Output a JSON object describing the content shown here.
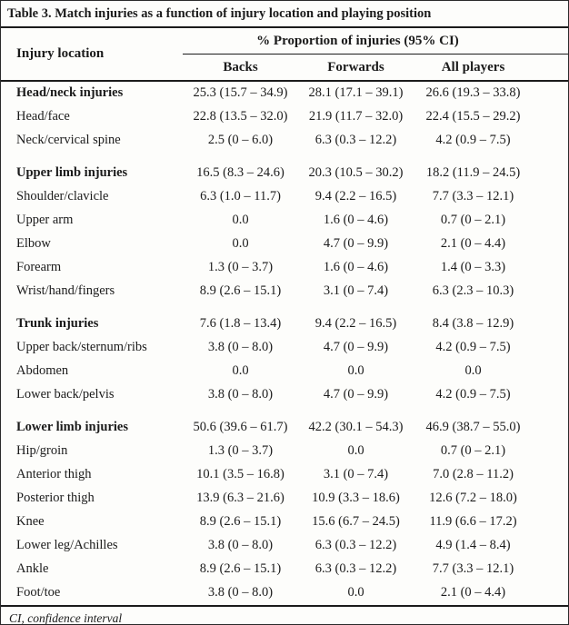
{
  "table": {
    "title": "Table 3. Match injuries as a function of injury location and playing position",
    "row_header": "Injury location",
    "col_group_header": "% Proportion of injuries (95% CI)",
    "columns": [
      "Backs",
      "Forwards",
      "All players"
    ],
    "rows": [
      {
        "label": "Head/neck injuries",
        "bold": true,
        "group_start": false,
        "values": [
          "25.3 (15.7 – 34.9)",
          "28.1 (17.1 – 39.1)",
          "26.6 (19.3 – 33.8)"
        ]
      },
      {
        "label": "Head/face",
        "bold": false,
        "group_start": false,
        "values": [
          "22.8 (13.5 – 32.0)",
          "21.9 (11.7 – 32.0)",
          "22.4 (15.5 – 29.2)"
        ]
      },
      {
        "label": "Neck/cervical spine",
        "bold": false,
        "group_start": false,
        "values": [
          "2.5 (0 – 6.0)",
          "6.3 (0.3 – 12.2)",
          "4.2 (0.9 – 7.5)"
        ]
      },
      {
        "label": "Upper limb injuries",
        "bold": true,
        "group_start": true,
        "values": [
          "16.5 (8.3 – 24.6)",
          "20.3 (10.5 – 30.2)",
          "18.2 (11.9 – 24.5)"
        ]
      },
      {
        "label": "Shoulder/clavicle",
        "bold": false,
        "group_start": false,
        "values": [
          "6.3 (1.0 – 11.7)",
          "9.4 (2.2 – 16.5)",
          "7.7 (3.3 – 12.1)"
        ]
      },
      {
        "label": "Upper arm",
        "bold": false,
        "group_start": false,
        "values": [
          "0.0",
          "1.6 (0 – 4.6)",
          "0.7 (0 – 2.1)"
        ]
      },
      {
        "label": "Elbow",
        "bold": false,
        "group_start": false,
        "values": [
          "0.0",
          "4.7 (0 – 9.9)",
          "2.1 (0 – 4.4)"
        ]
      },
      {
        "label": "Forearm",
        "bold": false,
        "group_start": false,
        "values": [
          "1.3 (0 – 3.7)",
          "1.6 (0 – 4.6)",
          "1.4 (0 – 3.3)"
        ]
      },
      {
        "label": "Wrist/hand/fingers",
        "bold": false,
        "group_start": false,
        "values": [
          "8.9 (2.6 – 15.1)",
          "3.1 (0 – 7.4)",
          "6.3 (2.3 – 10.3)"
        ]
      },
      {
        "label": "Trunk injuries",
        "bold": true,
        "group_start": true,
        "values": [
          "7.6 (1.8 – 13.4)",
          "9.4 (2.2 – 16.5)",
          "8.4 (3.8 – 12.9)"
        ]
      },
      {
        "label": "Upper back/sternum/ribs",
        "bold": false,
        "group_start": false,
        "values": [
          "3.8 (0 – 8.0)",
          "4.7 (0 – 9.9)",
          "4.2 (0.9 – 7.5)"
        ]
      },
      {
        "label": "Abdomen",
        "bold": false,
        "group_start": false,
        "values": [
          "0.0",
          "0.0",
          "0.0"
        ]
      },
      {
        "label": "Lower back/pelvis",
        "bold": false,
        "group_start": false,
        "values": [
          "3.8 (0 – 8.0)",
          "4.7 (0 – 9.9)",
          "4.2 (0.9 – 7.5)"
        ]
      },
      {
        "label": "Lower limb injuries",
        "bold": true,
        "group_start": true,
        "values": [
          "50.6 (39.6 – 61.7)",
          "42.2 (30.1 – 54.3)",
          "46.9 (38.7 – 55.0)"
        ]
      },
      {
        "label": "Hip/groin",
        "bold": false,
        "group_start": false,
        "values": [
          "1.3 (0 – 3.7)",
          "0.0",
          "0.7 (0 – 2.1)"
        ]
      },
      {
        "label": "Anterior thigh",
        "bold": false,
        "group_start": false,
        "values": [
          "10.1 (3.5 – 16.8)",
          "3.1 (0 – 7.4)",
          "7.0 (2.8 – 11.2)"
        ]
      },
      {
        "label": "Posterior thigh",
        "bold": false,
        "group_start": false,
        "values": [
          "13.9 (6.3 – 21.6)",
          "10.9 (3.3 – 18.6)",
          "12.6 (7.2 – 18.0)"
        ]
      },
      {
        "label": "Knee",
        "bold": false,
        "group_start": false,
        "values": [
          "8.9 (2.6 – 15.1)",
          "15.6 (6.7 – 24.5)",
          "11.9 (6.6 – 17.2)"
        ]
      },
      {
        "label": "Lower leg/Achilles",
        "bold": false,
        "group_start": false,
        "values": [
          "3.8 (0 – 8.0)",
          "6.3 (0.3 – 12.2)",
          "4.9 (1.4 – 8.4)"
        ]
      },
      {
        "label": "Ankle",
        "bold": false,
        "group_start": false,
        "values": [
          "8.9 (2.6 – 15.1)",
          "6.3 (0.3 – 12.2)",
          "7.7 (3.3 – 12.1)"
        ]
      },
      {
        "label": "Foot/toe",
        "bold": false,
        "group_start": false,
        "values": [
          "3.8 (0 – 8.0)",
          "0.0",
          "2.1 (0 – 4.4)"
        ]
      }
    ],
    "footnote": "CI, confidence interval"
  }
}
